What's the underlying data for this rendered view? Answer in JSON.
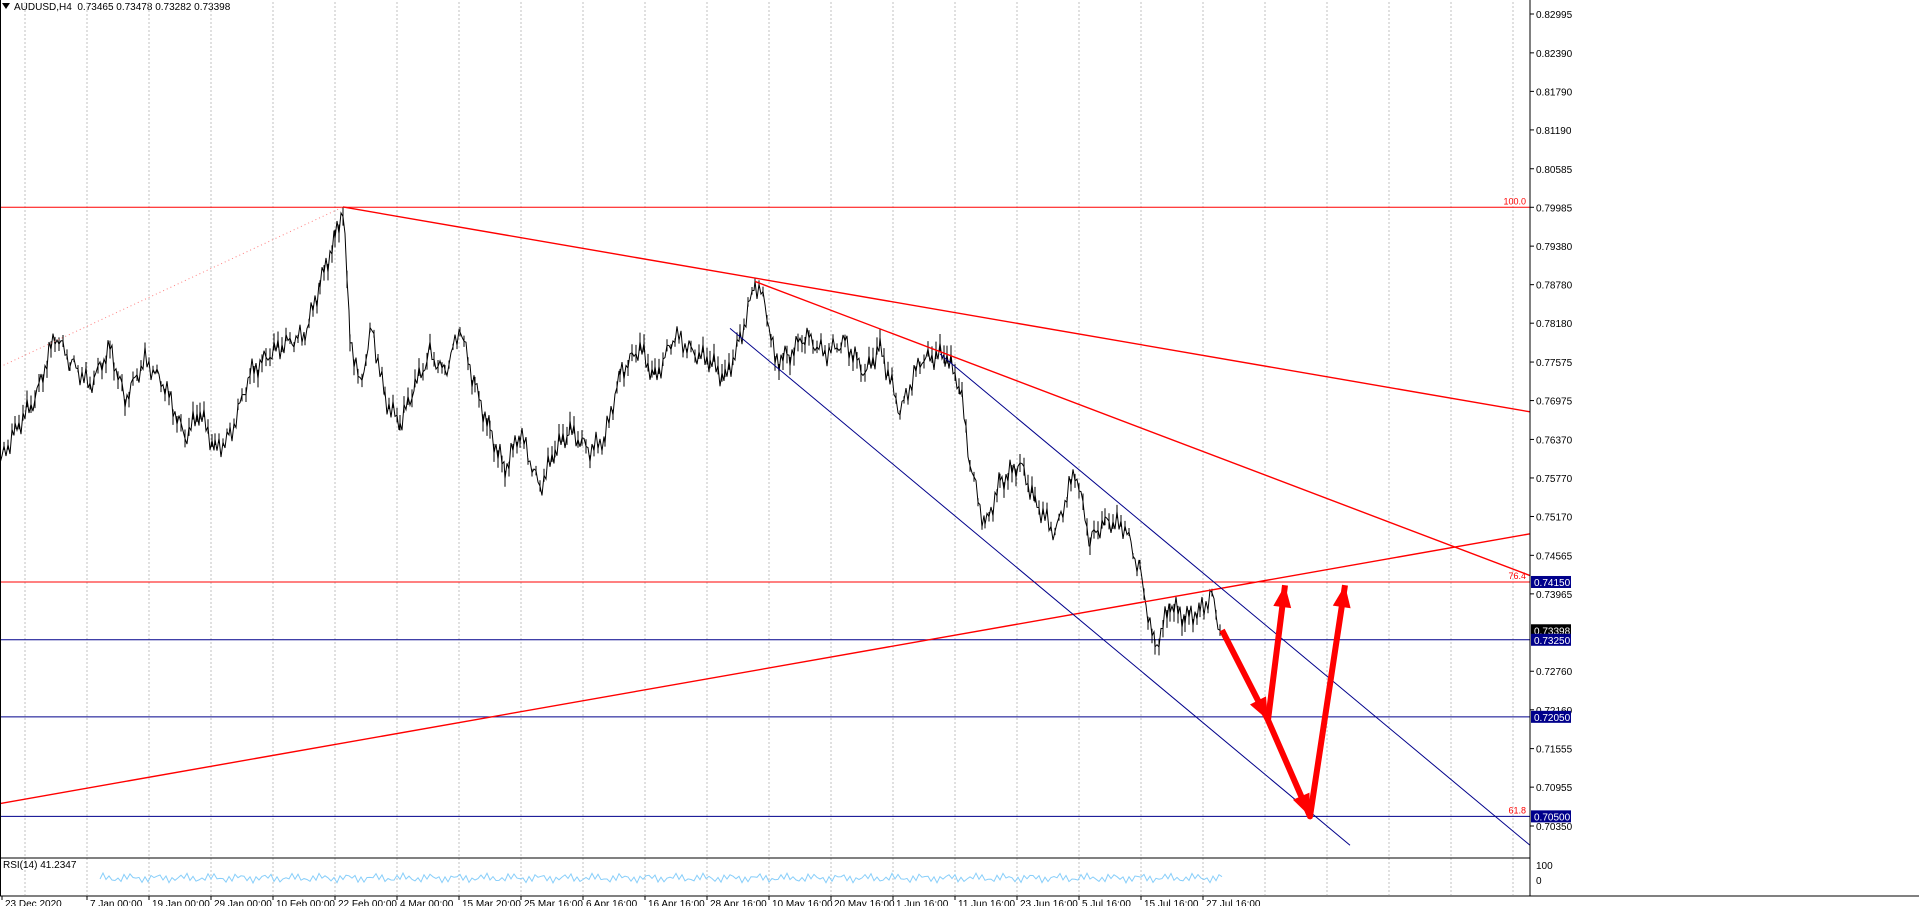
{
  "header": {
    "symbol": "AUDUSD,H4",
    "ohlc": "0.73465 0.73478 0.73282 0.73398"
  },
  "rsi": {
    "label": "RSI(14) 41.2347",
    "scale_top": "100",
    "scale_bottom": "0"
  },
  "colors": {
    "red": "#ff0000",
    "blue": "#00008b",
    "candle": "#000000",
    "grid": "#c0c0c0",
    "rsi_line": "#87cefa",
    "tag_blue": "#00008b"
  },
  "chart_data": {
    "type": "line",
    "title": "",
    "xlabel": "",
    "ylabel": "",
    "ylim": [
      0.699,
      0.835
    ],
    "grid": "vertical dashed",
    "price_axis": [
      "0.82995",
      "0.82390",
      "0.81790",
      "0.81190",
      "0.80585",
      "0.79985",
      "0.79380",
      "0.78780",
      "0.78180",
      "0.77575",
      "0.76975",
      "0.76370",
      "0.75770",
      "0.75170",
      "0.74565",
      "0.73965",
      "0.72760",
      "0.72160",
      "0.71555",
      "0.70955",
      "0.70350"
    ],
    "time_axis": [
      "23 Dec 2020",
      "7 Jan 00:00",
      "19 Jan 00:00",
      "29 Jan 00:00",
      "10 Feb 00:00",
      "22 Feb 00:00",
      "4 Mar 00:00",
      "15 Mar 20:00",
      "25 Mar 16:00",
      "6 Apr 16:00",
      "16 Apr 16:00",
      "28 Apr 16:00",
      "10 May 16:00",
      "20 May 16:00",
      "1 Jun 16:00",
      "11 Jun 16:00",
      "23 Jun 16:00",
      "5 Jul 16:00",
      "15 Jul 16:00",
      "27 Jul 16:00"
    ],
    "series": [
      {
        "values": [
          [
            0,
            0.76
          ],
          [
            15,
            0.765
          ],
          [
            35,
            0.77
          ],
          [
            55,
            0.78
          ],
          [
            70,
            0.776
          ],
          [
            90,
            0.772
          ],
          [
            110,
            0.778
          ],
          [
            125,
            0.77
          ],
          [
            145,
            0.776
          ],
          [
            165,
            0.772
          ],
          [
            185,
            0.764
          ],
          [
            200,
            0.768
          ],
          [
            215,
            0.762
          ],
          [
            230,
            0.764
          ],
          [
            250,
            0.774
          ],
          [
            270,
            0.777
          ],
          [
            290,
            0.779
          ],
          [
            305,
            0.78
          ],
          [
            320,
            0.788
          ],
          [
            335,
            0.795
          ],
          [
            343,
            0.7999
          ],
          [
            350,
            0.78
          ],
          [
            360,
            0.772
          ],
          [
            372,
            0.781
          ],
          [
            385,
            0.77
          ],
          [
            400,
            0.766
          ],
          [
            415,
            0.772
          ],
          [
            430,
            0.777
          ],
          [
            445,
            0.774
          ],
          [
            460,
            0.781
          ],
          [
            475,
            0.772
          ],
          [
            490,
            0.765
          ],
          [
            505,
            0.759
          ],
          [
            520,
            0.765
          ],
          [
            540,
            0.756
          ],
          [
            555,
            0.762
          ],
          [
            570,
            0.765
          ],
          [
            590,
            0.762
          ],
          [
            605,
            0.764
          ],
          [
            620,
            0.774
          ],
          [
            640,
            0.778
          ],
          [
            655,
            0.773
          ],
          [
            675,
            0.78
          ],
          [
            695,
            0.777
          ],
          [
            710,
            0.776
          ],
          [
            725,
            0.773
          ],
          [
            740,
            0.779
          ],
          [
            755,
            0.788
          ],
          [
            765,
            0.785
          ],
          [
            775,
            0.776
          ],
          [
            790,
            0.777
          ],
          [
            805,
            0.78
          ],
          [
            825,
            0.777
          ],
          [
            845,
            0.779
          ],
          [
            865,
            0.774
          ],
          [
            880,
            0.778
          ],
          [
            900,
            0.768
          ],
          [
            920,
            0.776
          ],
          [
            945,
            0.777
          ],
          [
            960,
            0.772
          ],
          [
            970,
            0.76
          ],
          [
            985,
            0.75
          ],
          [
            1000,
            0.757
          ],
          [
            1020,
            0.76
          ],
          [
            1035,
            0.754
          ],
          [
            1055,
            0.749
          ],
          [
            1075,
            0.759
          ],
          [
            1090,
            0.748
          ],
          [
            1105,
            0.751
          ],
          [
            1125,
            0.75
          ],
          [
            1140,
            0.743
          ],
          [
            1155,
            0.731
          ],
          [
            1170,
            0.738
          ],
          [
            1185,
            0.736
          ],
          [
            1200,
            0.737
          ],
          [
            1212,
            0.7395
          ],
          [
            1220,
            0.734
          ]
        ]
      }
    ],
    "horizontal_levels": [
      {
        "price": 0.79985,
        "color": "red",
        "label": "100.0"
      },
      {
        "price": 0.7415,
        "color": "red",
        "label": "76.4"
      },
      {
        "price": 0.7325,
        "color": "blue"
      },
      {
        "price": 0.7205,
        "color": "blue"
      },
      {
        "price": 0.705,
        "color": "blue",
        "label": "61.8"
      }
    ],
    "price_tags": [
      {
        "text": "0.74150",
        "color": "blue"
      },
      {
        "text": "0.73398",
        "color": "black"
      },
      {
        "text": "0.73250",
        "color": "blue"
      },
      {
        "text": "0.72050",
        "color": "blue"
      },
      {
        "text": "0.70500",
        "color": "blue"
      }
    ],
    "trendlines": [
      {
        "color": "red",
        "from": [
          343,
          0.7999
        ],
        "to": [
          1530,
          0.768
        ]
      },
      {
        "color": "red",
        "from": [
          755,
          0.7883
        ],
        "to": [
          1530,
          0.7425
        ]
      },
      {
        "color": "red",
        "from": [
          0,
          0.707
        ],
        "to": [
          1530,
          0.749
        ]
      },
      {
        "color": "red",
        "style": "dotted",
        "from": [
          0,
          0.775
        ],
        "to": [
          343,
          0.7999
        ]
      },
      {
        "color": "blue",
        "from": [
          940,
          0.777
        ],
        "to": [
          1530,
          0.7005
        ]
      },
      {
        "color": "blue",
        "from": [
          730,
          0.781
        ],
        "to": [
          1350,
          0.7005
        ]
      }
    ],
    "forecast_arrows": [
      {
        "path": [
          [
            1222,
            0.734
          ],
          [
            1268,
            0.72
          ],
          [
            1285,
            0.741
          ]
        ]
      },
      {
        "path": [
          [
            1268,
            0.72
          ],
          [
            1310,
            0.705
          ],
          [
            1345,
            0.741
          ]
        ]
      }
    ]
  }
}
